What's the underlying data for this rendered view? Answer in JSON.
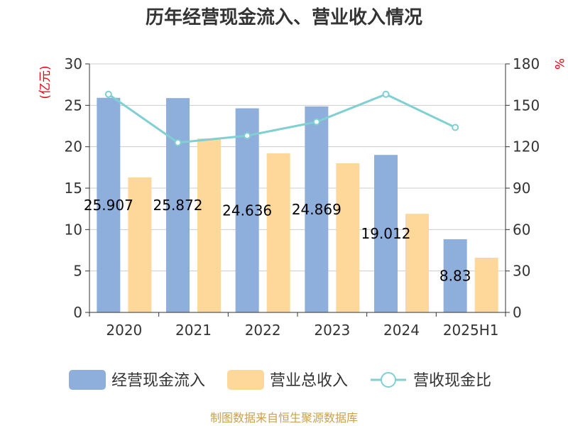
{
  "title": "历年经营现金流入、营业收入情况",
  "source": "制图数据来自恒生聚源数据库",
  "colors": {
    "cash_inflow": "#8eaedb",
    "revenue": "#fdd89a",
    "ratio": "#7fcfd3",
    "axis": "#333333",
    "grid": "#cccccc",
    "unit": "#e60012"
  },
  "chart_data": {
    "type": "bar",
    "categories": [
      "2020",
      "2021",
      "2022",
      "2023",
      "2024",
      "2025H1"
    ],
    "series": [
      {
        "name": "经营现金流入",
        "type": "bar",
        "axis": "left",
        "values": [
          25.907,
          25.872,
          24.636,
          24.869,
          19.012,
          8.83
        ],
        "labels": [
          "25.907",
          "25.872",
          "24.636",
          "24.869",
          "19.012",
          "8.83"
        ]
      },
      {
        "name": "营业总收入",
        "type": "bar",
        "axis": "left",
        "values": [
          16.3,
          21.0,
          19.2,
          18.0,
          11.9,
          6.6
        ]
      },
      {
        "name": "营收现金比",
        "type": "line",
        "axis": "right",
        "values": [
          158,
          123,
          128,
          138,
          158,
          134
        ]
      }
    ],
    "ylabel_left": "(亿元)",
    "ylabel_right": "%",
    "ylim_left": [
      0,
      30
    ],
    "ylim_right": [
      0,
      180
    ],
    "yticks_left": [
      "0",
      "5",
      "10",
      "15",
      "20",
      "25",
      "30"
    ],
    "yticks_right": [
      "0",
      "30",
      "60",
      "90",
      "120",
      "150",
      "180"
    ],
    "grid": true,
    "legend_position": "bottom"
  }
}
